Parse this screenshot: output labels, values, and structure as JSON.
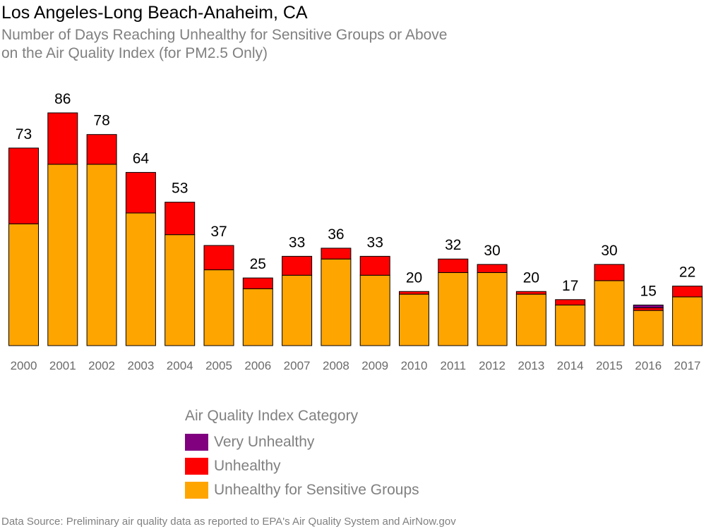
{
  "chart_data": {
    "type": "bar",
    "stacked": true,
    "title": "Los Angeles-Long Beach-Anaheim, CA",
    "subtitle_lines": [
      "Number of Days Reaching Unhealthy for Sensitive Groups or Above",
      "on the Air Quality Index (for PM2.5 Only)"
    ],
    "categories": [
      "2000",
      "2001",
      "2002",
      "2003",
      "2004",
      "2005",
      "2006",
      "2007",
      "2008",
      "2009",
      "2010",
      "2011",
      "2012",
      "2013",
      "2014",
      "2015",
      "2016",
      "2017"
    ],
    "totals": [
      73,
      86,
      78,
      64,
      53,
      37,
      25,
      33,
      36,
      33,
      20,
      32,
      30,
      20,
      17,
      30,
      15,
      22
    ],
    "series": [
      {
        "name": "Unhealthy for Sensitive Groups",
        "color": "#FFA500",
        "values": [
          45,
          67,
          67,
          49,
          41,
          28,
          21,
          26,
          32,
          26,
          19,
          27,
          27,
          19,
          15,
          24,
          13,
          18
        ]
      },
      {
        "name": "Unhealthy",
        "color": "#FF0000",
        "values": [
          28,
          19,
          11,
          15,
          12,
          9,
          4,
          7,
          4,
          7,
          1,
          5,
          3,
          1,
          2,
          6,
          1,
          4
        ]
      },
      {
        "name": "Very Unhealthy",
        "color": "#800080",
        "values": [
          0,
          0,
          0,
          0,
          0,
          0,
          0,
          0,
          0,
          0,
          0,
          0,
          0,
          0,
          0,
          0,
          1,
          0
        ]
      }
    ],
    "ylim": [
      0,
      86
    ],
    "grid": false,
    "legend": {
      "title": "Air Quality Index Category",
      "placement": "bottom-center",
      "order": [
        "Very Unhealthy",
        "Unhealthy",
        "Unhealthy for Sensitive Groups"
      ]
    },
    "source": "Data Source: Preliminary air quality data as reported to EPA's Air Quality System and AirNow.gov"
  }
}
